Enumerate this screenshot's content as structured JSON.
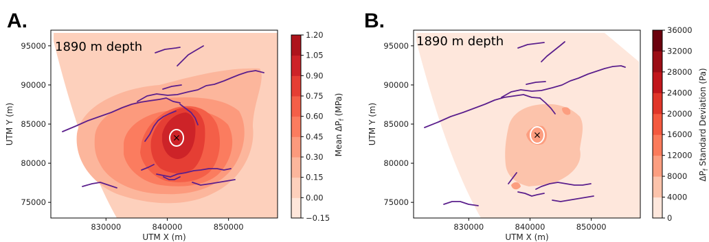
{
  "chart_data": [
    {
      "type": "heatmap",
      "panel_label": "A.",
      "annotation": "1890 m depth",
      "xlabel": "UTM X (m)",
      "ylabel": "UTM Y (m)",
      "xlim": [
        821000,
        858000
      ],
      "ylim": [
        73000,
        97000
      ],
      "xticks": [
        830000,
        840000,
        850000
      ],
      "yticks": [
        75000,
        80000,
        85000,
        90000,
        95000
      ],
      "colorbar": {
        "label": "Mean ΔP_f (MPa)",
        "levels": [
          -0.15,
          0.0,
          0.15,
          0.3,
          0.45,
          0.6,
          0.75,
          0.9,
          1.05,
          1.2
        ],
        "tick_labels": [
          "−0.15",
          "0.00",
          "0.15",
          "0.30",
          "0.45",
          "0.60",
          "0.75",
          "0.90",
          "1.05",
          "1.20"
        ],
        "colors": [
          "#fee6da",
          "#fdd0bc",
          "#fcb69c",
          "#fc9a7d",
          "#fb7c5f",
          "#f45f48",
          "#e53e34",
          "#cd2328",
          "#ae141c"
        ]
      }
    },
    {
      "type": "heatmap",
      "panel_label": "B.",
      "annotation": "1890 m depth",
      "xlabel": "UTM X (m)",
      "ylabel": "UTM Y (m)",
      "xlim": [
        821000,
        858000
      ],
      "ylim": [
        73000,
        97000
      ],
      "xticks": [
        830000,
        840000,
        850000
      ],
      "yticks": [
        75000,
        80000,
        85000,
        90000,
        95000
      ],
      "colorbar": {
        "label": "ΔP_f Standard Deviation (Pa)",
        "levels": [
          0,
          4000,
          8000,
          12000,
          16000,
          20000,
          24000,
          28000,
          32000,
          36000
        ],
        "tick_labels": [
          "0",
          "4000",
          "8000",
          "12000",
          "16000",
          "20000",
          "24000",
          "28000",
          "32000",
          "36000"
        ],
        "colors": [
          "#fee7dc",
          "#fcc3ab",
          "#fc9e80",
          "#fb7b5b",
          "#f4593f",
          "#e03629",
          "#c1161b",
          "#9b0d15",
          "#6b010d"
        ]
      }
    }
  ],
  "colors": {
    "fault": "#5a1e8c",
    "well_marker": "#000000",
    "well_ring": "#ffffff"
  }
}
